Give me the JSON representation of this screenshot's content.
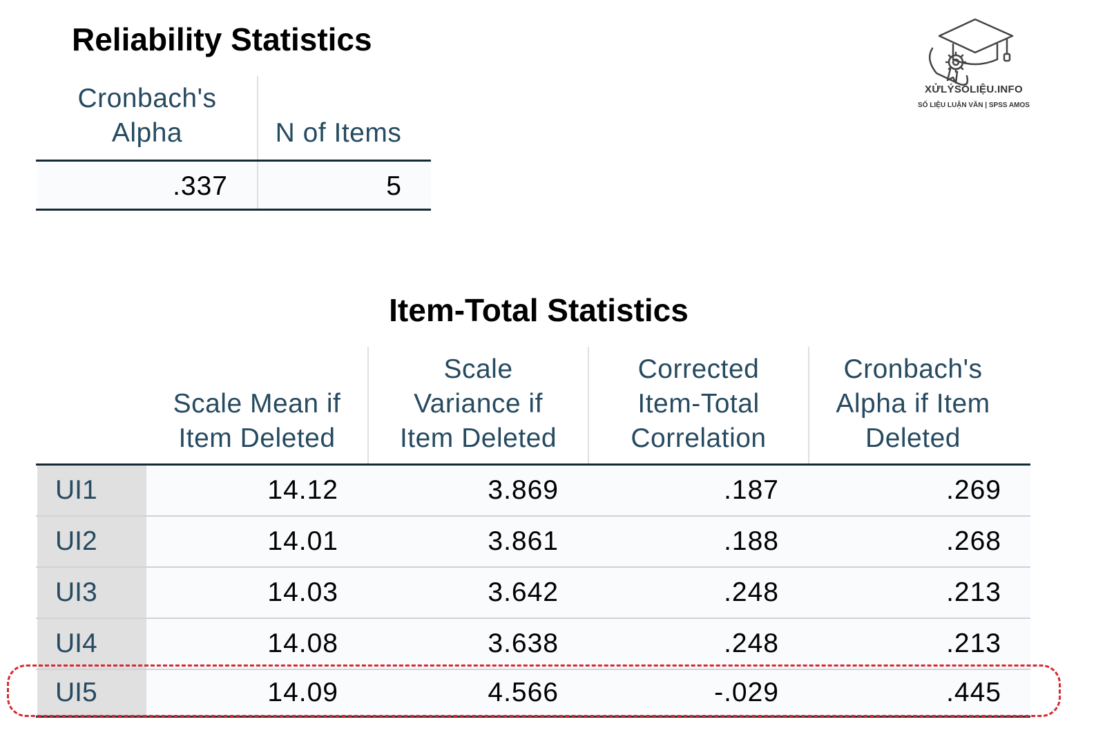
{
  "reliability": {
    "title": "Reliability Statistics",
    "headers": [
      "Cronbach's\nAlpha",
      "N of Items"
    ],
    "values": [
      ".337",
      "5"
    ]
  },
  "item_total": {
    "title": "Item-Total Statistics",
    "headers": [
      "Scale Mean if\nItem Deleted",
      "Scale\nVariance if\nItem Deleted",
      "Corrected\nItem-Total\nCorrelation",
      "Cronbach's\nAlpha if Item\nDeleted"
    ],
    "rows": [
      {
        "label": "UI1",
        "values": [
          "14.12",
          "3.869",
          ".187",
          ".269"
        ]
      },
      {
        "label": "UI2",
        "values": [
          "14.01",
          "3.861",
          ".188",
          ".268"
        ]
      },
      {
        "label": "UI3",
        "values": [
          "14.03",
          "3.642",
          ".248",
          ".213"
        ]
      },
      {
        "label": "UI4",
        "values": [
          "14.08",
          "3.638",
          ".248",
          ".213"
        ]
      },
      {
        "label": "UI5",
        "values": [
          "14.09",
          "4.566",
          "-.029",
          ".445"
        ]
      }
    ]
  },
  "logo": {
    "name": "XỬLÝSỐLIỆU.INFO",
    "tagline": "SỐ LIỆU LUẬN VĂN | SPSS AMOS",
    "icon": "graduation-cap-gear-icon"
  },
  "highlight": {
    "row": "UI5",
    "color": "#d7282f"
  },
  "colors": {
    "header_text": "#264a60",
    "row_label_bg": "#e0e0e0",
    "rule": "#152935"
  }
}
